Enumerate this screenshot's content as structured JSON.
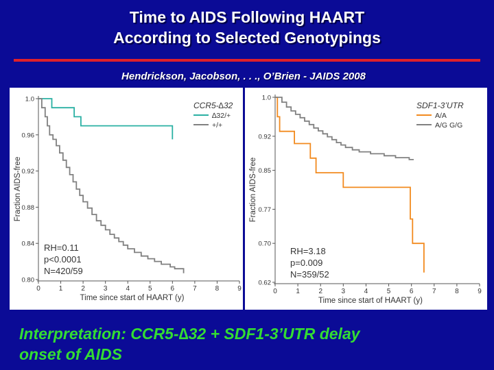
{
  "header": {
    "title_line1": "Time to AIDS Following  HAART",
    "title_line2": "According to Selected Genotypings",
    "citation": "Hendrickson, Jacobson, . . ., O’Brien  -  JAIDS 2008"
  },
  "footer": {
    "interpretation_line1": "Interpretation: CCR5-∆32 + SDF1-3’UTR delay",
    "interpretation_line2": "onset of AIDS"
  },
  "chart_data": [
    {
      "type": "line",
      "step": true,
      "xlabel": "Time since start of HAART (y)",
      "ylabel": "Fraction AIDS-free",
      "xlim": [
        0,
        9
      ],
      "ylim": [
        0.8,
        1.0
      ],
      "xticks": [
        0,
        1,
        2,
        3,
        4,
        5,
        6,
        7,
        8,
        9
      ],
      "yticks": [
        0.8,
        0.84,
        0.88,
        0.92,
        0.96,
        1.0
      ],
      "ytick_labels": [
        "0.80",
        "0.84",
        "0.88",
        "0.92",
        "0.96",
        "1.0"
      ],
      "legend_title": "CCR5-∆32",
      "legend_position": "top-right",
      "grid": false,
      "stats": [
        "RH=0.11",
        "p<0.0001",
        "N=420/59"
      ],
      "series": [
        {
          "name": "∆32/+",
          "color": "#2ab0a3",
          "points": [
            [
              0,
              1.0
            ],
            [
              0.6,
              1.0
            ],
            [
              0.6,
              0.99
            ],
            [
              1.6,
              0.99
            ],
            [
              1.6,
              0.98
            ],
            [
              1.9,
              0.98
            ],
            [
              1.9,
              0.97
            ],
            [
              6.0,
              0.97
            ],
            [
              6.0,
              0.955
            ]
          ]
        },
        {
          "name": "+/+",
          "color": "#808080",
          "points": [
            [
              0,
              1.0
            ],
            [
              0.15,
              1.0
            ],
            [
              0.15,
              0.99
            ],
            [
              0.3,
              0.99
            ],
            [
              0.3,
              0.98
            ],
            [
              0.4,
              0.98
            ],
            [
              0.4,
              0.97
            ],
            [
              0.5,
              0.97
            ],
            [
              0.5,
              0.96
            ],
            [
              0.65,
              0.96
            ],
            [
              0.65,
              0.955
            ],
            [
              0.8,
              0.955
            ],
            [
              0.8,
              0.948
            ],
            [
              0.95,
              0.948
            ],
            [
              0.95,
              0.94
            ],
            [
              1.1,
              0.94
            ],
            [
              1.1,
              0.932
            ],
            [
              1.25,
              0.932
            ],
            [
              1.25,
              0.924
            ],
            [
              1.4,
              0.924
            ],
            [
              1.4,
              0.916
            ],
            [
              1.55,
              0.916
            ],
            [
              1.55,
              0.908
            ],
            [
              1.7,
              0.908
            ],
            [
              1.7,
              0.9
            ],
            [
              1.85,
              0.9
            ],
            [
              1.85,
              0.893
            ],
            [
              2.0,
              0.893
            ],
            [
              2.0,
              0.886
            ],
            [
              2.2,
              0.886
            ],
            [
              2.2,
              0.879
            ],
            [
              2.4,
              0.879
            ],
            [
              2.4,
              0.872
            ],
            [
              2.6,
              0.872
            ],
            [
              2.6,
              0.865
            ],
            [
              2.8,
              0.865
            ],
            [
              2.8,
              0.86
            ],
            [
              3.0,
              0.86
            ],
            [
              3.0,
              0.855
            ],
            [
              3.2,
              0.855
            ],
            [
              3.2,
              0.85
            ],
            [
              3.4,
              0.85
            ],
            [
              3.4,
              0.846
            ],
            [
              3.6,
              0.846
            ],
            [
              3.6,
              0.842
            ],
            [
              3.8,
              0.842
            ],
            [
              3.8,
              0.838
            ],
            [
              4.0,
              0.838
            ],
            [
              4.0,
              0.834
            ],
            [
              4.3,
              0.834
            ],
            [
              4.3,
              0.83
            ],
            [
              4.6,
              0.83
            ],
            [
              4.6,
              0.826
            ],
            [
              4.9,
              0.826
            ],
            [
              4.9,
              0.823
            ],
            [
              5.2,
              0.823
            ],
            [
              5.2,
              0.82
            ],
            [
              5.5,
              0.82
            ],
            [
              5.5,
              0.817
            ],
            [
              5.9,
              0.817
            ],
            [
              5.9,
              0.814
            ],
            [
              6.1,
              0.814
            ],
            [
              6.1,
              0.812
            ],
            [
              6.5,
              0.812
            ],
            [
              6.5,
              0.807
            ]
          ]
        }
      ]
    },
    {
      "type": "line",
      "step": true,
      "xlabel": "Time since start of HAART (y)",
      "ylabel": "Fraction AIDS-free",
      "xlim": [
        0,
        9
      ],
      "ylim": [
        0.62,
        1.0
      ],
      "xticks": [
        0,
        1,
        2,
        3,
        4,
        5,
        6,
        7,
        8,
        9
      ],
      "yticks": [
        0.62,
        0.7,
        0.77,
        0.85,
        0.92,
        1.0
      ],
      "ytick_labels": [
        "0.62",
        "0.70",
        "0.77",
        "0.85",
        "0.92",
        "1.0"
      ],
      "legend_title": "SDF1-3’UTR",
      "legend_position": "top-right",
      "grid": false,
      "stats": [
        "RH=3.18",
        "p=0.009",
        "N=359/52"
      ],
      "series": [
        {
          "name": "A/A",
          "color": "#f28a1e",
          "points": [
            [
              0,
              1.0
            ],
            [
              0.1,
              1.0
            ],
            [
              0.1,
              0.96
            ],
            [
              0.2,
              0.96
            ],
            [
              0.2,
              0.93
            ],
            [
              0.85,
              0.93
            ],
            [
              0.85,
              0.905
            ],
            [
              1.55,
              0.905
            ],
            [
              1.55,
              0.875
            ],
            [
              1.8,
              0.875
            ],
            [
              1.8,
              0.845
            ],
            [
              3.0,
              0.845
            ],
            [
              3.0,
              0.815
            ],
            [
              5.95,
              0.815
            ],
            [
              5.95,
              0.75
            ],
            [
              6.05,
              0.75
            ],
            [
              6.05,
              0.7
            ],
            [
              6.55,
              0.7
            ],
            [
              6.55,
              0.64
            ]
          ]
        },
        {
          "name": "A/G G/G",
          "color": "#808080",
          "points": [
            [
              0,
              1.0
            ],
            [
              0.3,
              1.0
            ],
            [
              0.3,
              0.99
            ],
            [
              0.5,
              0.99
            ],
            [
              0.5,
              0.98
            ],
            [
              0.7,
              0.98
            ],
            [
              0.7,
              0.972
            ],
            [
              0.9,
              0.972
            ],
            [
              0.9,
              0.965
            ],
            [
              1.1,
              0.965
            ],
            [
              1.1,
              0.958
            ],
            [
              1.3,
              0.958
            ],
            [
              1.3,
              0.951
            ],
            [
              1.5,
              0.951
            ],
            [
              1.5,
              0.944
            ],
            [
              1.7,
              0.944
            ],
            [
              1.7,
              0.937
            ],
            [
              1.9,
              0.937
            ],
            [
              1.9,
              0.931
            ],
            [
              2.1,
              0.931
            ],
            [
              2.1,
              0.925
            ],
            [
              2.3,
              0.925
            ],
            [
              2.3,
              0.919
            ],
            [
              2.5,
              0.919
            ],
            [
              2.5,
              0.913
            ],
            [
              2.7,
              0.913
            ],
            [
              2.7,
              0.907
            ],
            [
              2.9,
              0.907
            ],
            [
              2.9,
              0.902
            ],
            [
              3.1,
              0.902
            ],
            [
              3.1,
              0.897
            ],
            [
              3.4,
              0.897
            ],
            [
              3.4,
              0.892
            ],
            [
              3.7,
              0.892
            ],
            [
              3.7,
              0.888
            ],
            [
              4.2,
              0.888
            ],
            [
              4.2,
              0.884
            ],
            [
              4.8,
              0.884
            ],
            [
              4.8,
              0.88
            ],
            [
              5.3,
              0.88
            ],
            [
              5.3,
              0.876
            ],
            [
              5.9,
              0.876
            ],
            [
              5.9,
              0.872
            ],
            [
              6.1,
              0.872
            ]
          ]
        }
      ]
    }
  ]
}
